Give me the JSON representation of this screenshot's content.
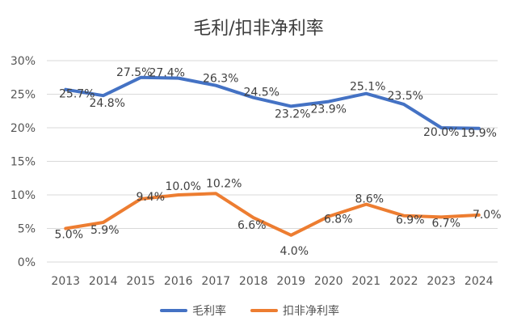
{
  "chart_data": {
    "type": "line",
    "title": "毛利/扣非净利率",
    "xlabel": "",
    "ylabel": "",
    "x": [
      "2013",
      "2014",
      "2015",
      "2016",
      "2017",
      "2018",
      "2019",
      "2020",
      "2021",
      "2022",
      "2023",
      "2024"
    ],
    "y_ticks": [
      "0%",
      "5%",
      "10%",
      "15%",
      "20%",
      "25%",
      "30%"
    ],
    "ylim": [
      0,
      30
    ],
    "grid": true,
    "legend": "bottom",
    "series": [
      {
        "name": "毛利率",
        "color": "#4472C4",
        "values": [
          25.7,
          24.8,
          27.5,
          27.4,
          26.3,
          24.5,
          23.2,
          23.9,
          25.1,
          23.5,
          20.0,
          19.9
        ],
        "labels": [
          "25.7%",
          "24.8%",
          "27.5%",
          "27.4%",
          "26.3%",
          "24.5%",
          "23.2%",
          "23.9%",
          "25.1%",
          "23.5%",
          "20.0%",
          "19.9%"
        ]
      },
      {
        "name": "扣非净利率",
        "color": "#ED7D31",
        "values": [
          5.0,
          5.9,
          9.4,
          10.0,
          10.2,
          6.6,
          4.0,
          6.8,
          8.6,
          6.9,
          6.7,
          7.0
        ],
        "labels": [
          "5.0%",
          "5.9%",
          "9.4%",
          "10.0%",
          "10.2%",
          "6.6%",
          "4.0%",
          "6.8%",
          "8.6%",
          "6.9%",
          "6.7%",
          "7.0%"
        ]
      }
    ]
  }
}
